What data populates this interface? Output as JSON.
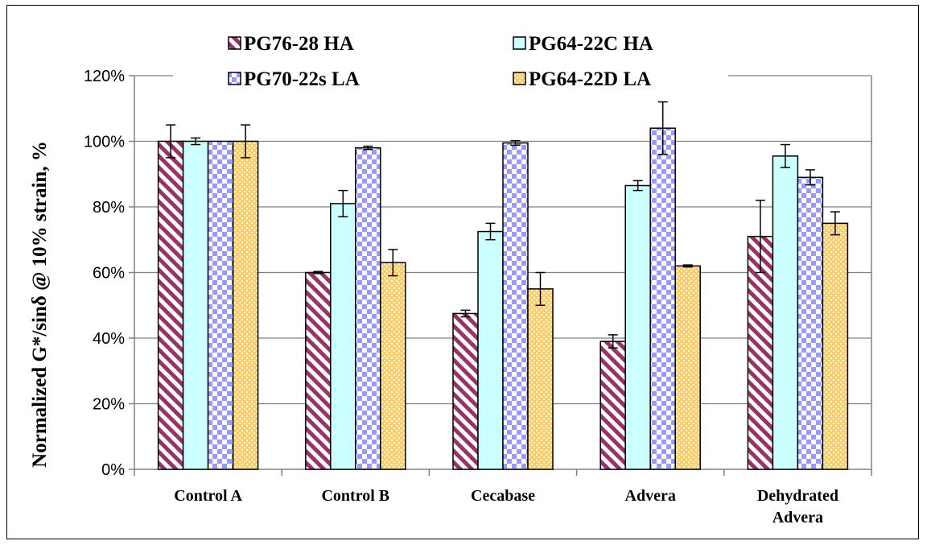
{
  "chart_data": {
    "type": "bar",
    "title": "",
    "xlabel": "",
    "ylabel": "Normalized G*/sinδ @ 10% strain, %",
    "ylim": [
      0,
      120
    ],
    "yticks": [
      "0%",
      "20%",
      "40%",
      "60%",
      "80%",
      "100%",
      "120%"
    ],
    "grid": true,
    "legend_position": "top",
    "categories": [
      {
        "lines": [
          "Control A"
        ]
      },
      {
        "lines": [
          "Control B"
        ]
      },
      {
        "lines": [
          "Cecabase"
        ]
      },
      {
        "lines": [
          "Advera"
        ]
      },
      {
        "lines": [
          "Dehydrated",
          "Advera"
        ]
      }
    ],
    "series": [
      {
        "name": "PG76-28 HA",
        "pattern": "diagonal",
        "color": "#993366",
        "values": [
          100,
          60,
          47.5,
          39,
          71
        ],
        "errors": [
          5,
          0.3,
          1,
          2,
          11
        ]
      },
      {
        "name": "PG64-22C HA",
        "pattern": "solid",
        "color": "#ccffff",
        "values": [
          100,
          81,
          72.5,
          86.5,
          95.5
        ],
        "errors": [
          1,
          4,
          2.5,
          1.5,
          3.5
        ]
      },
      {
        "name": "PG70-22s LA",
        "pattern": "checker",
        "color": "#9999ff",
        "values": [
          100,
          98,
          99.5,
          104,
          89
        ],
        "errors": [
          0,
          0.5,
          0.7,
          8,
          2.3
        ]
      },
      {
        "name": "PG64-22D LA",
        "pattern": "dotted",
        "color": "#ffcc66",
        "values": [
          100,
          63,
          55,
          62,
          75
        ],
        "errors": [
          5,
          4,
          5,
          0.3,
          3.5
        ]
      }
    ],
    "colors": {
      "axis": "#808080",
      "grid": "#808080",
      "outline": "#000000",
      "error_bar": "#000000"
    }
  }
}
